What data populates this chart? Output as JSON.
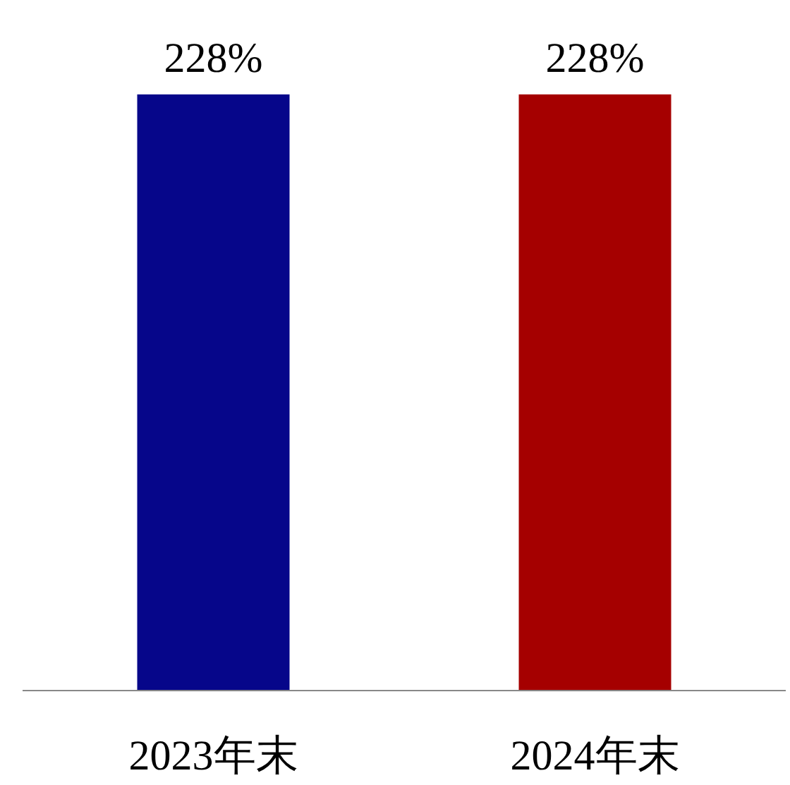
{
  "chart_data": {
    "type": "bar",
    "categories": [
      "2023年末",
      "2024年末"
    ],
    "values": [
      228,
      228
    ],
    "colors": [
      "#06068a",
      "#a50000"
    ],
    "value_labels": [
      "228%",
      "228%"
    ]
  }
}
